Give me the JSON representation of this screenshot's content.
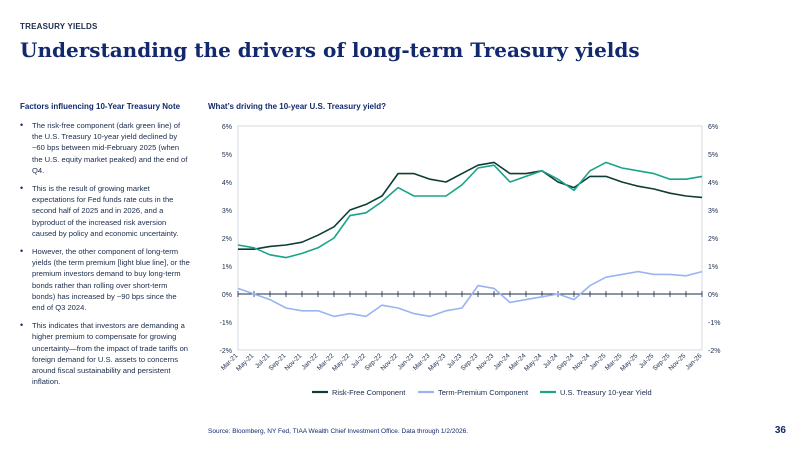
{
  "header": {
    "eyebrow": "TREASURY YIELDS",
    "title": "Understanding the drivers of long-term Treasury yields"
  },
  "left_panel": {
    "heading": "Factors influencing 10-Year Treasury Note",
    "bullets": [
      "The risk-free component (dark green line) of the U.S. Treasury 10-year yield declined by ~60 bps between mid-February 2025 (when the U.S. equity market peaked) and the end of Q4.",
      "This is the result of growing market expectations for Fed funds rate cuts in the second half of 2025 and in 2026, and a byproduct of the increased risk aversion caused by policy and economic uncertainty.",
      "However, the other component of long-term yields (the term premium [light blue line], or the premium investors demand to buy long-term bonds rather than rolling over short-term bonds) has increased by ~90 bps since the end of Q3 2024.",
      "This indicates that investors are demanding a higher premium to compensate for growing uncertainty—from the impact of trade tariffs on foreign demand for U.S. assets to concerns around fiscal sustainability and persistent inflation."
    ]
  },
  "chart_heading": "What’s driving the 10-year U.S. Treasury yield?",
  "footer": {
    "source": "Source: Bloomberg, NY Fed, TIAA Wealth Chief Investment Office. Data through 1/2/2026.",
    "page_number": "36"
  },
  "chart_data": {
    "type": "line",
    "y_ticks_left": [
      "6%",
      "5%",
      "4%",
      "3%",
      "2%",
      "1%",
      "0%",
      "-1%",
      "-2%"
    ],
    "y_ticks_right": [
      "6%",
      "5%",
      "4%",
      "3%",
      "2%",
      "1%",
      "0%",
      "-1%",
      "-2%"
    ],
    "ylim": [
      -2,
      6
    ],
    "x_labels": [
      "Mar-21",
      "May-21",
      "Jul-21",
      "Sep-21",
      "Nov-21",
      "Jan-22",
      "Mar-22",
      "May-22",
      "Jul-22",
      "Sep-22",
      "Nov-22",
      "Jan-23",
      "Mar-23",
      "May-23",
      "Jul-23",
      "Sep-23",
      "Nov-23",
      "Jan-24",
      "Mar-24",
      "May-24",
      "Jul-24",
      "Sep-24",
      "Nov-24",
      "Jan-25",
      "Mar-25",
      "May-25",
      "Jul-25",
      "Sep-25",
      "Nov-25",
      "Jan-26"
    ],
    "series": [
      {
        "name": "Risk-Free Component",
        "color": "#0e3d36",
        "values": [
          1.6,
          1.6,
          1.7,
          1.75,
          1.85,
          2.1,
          2.4,
          3.0,
          3.2,
          3.5,
          4.3,
          4.3,
          4.1,
          4.0,
          4.3,
          4.6,
          4.7,
          4.3,
          4.3,
          4.4,
          4.0,
          3.8,
          4.2,
          4.2,
          4.0,
          3.85,
          3.75,
          3.6,
          3.5,
          3.45
        ]
      },
      {
        "name": "Term-Premium Component",
        "color": "#9ab4f0",
        "values": [
          0.2,
          0.0,
          -0.2,
          -0.5,
          -0.6,
          -0.6,
          -0.8,
          -0.7,
          -0.8,
          -0.4,
          -0.5,
          -0.7,
          -0.8,
          -0.6,
          -0.5,
          0.3,
          0.2,
          -0.3,
          -0.2,
          -0.1,
          0.0,
          -0.2,
          0.3,
          0.6,
          0.7,
          0.8,
          0.7,
          0.7,
          0.65,
          0.8
        ]
      },
      {
        "name": "U.S. Treasury 10-year Yield",
        "color": "#19a48a",
        "values": [
          1.75,
          1.65,
          1.4,
          1.3,
          1.45,
          1.65,
          2.0,
          2.8,
          2.9,
          3.3,
          3.8,
          3.5,
          3.5,
          3.5,
          3.9,
          4.5,
          4.6,
          4.0,
          4.2,
          4.4,
          4.1,
          3.7,
          4.4,
          4.7,
          4.5,
          4.4,
          4.3,
          4.1,
          4.1,
          4.2
        ]
      }
    ]
  }
}
